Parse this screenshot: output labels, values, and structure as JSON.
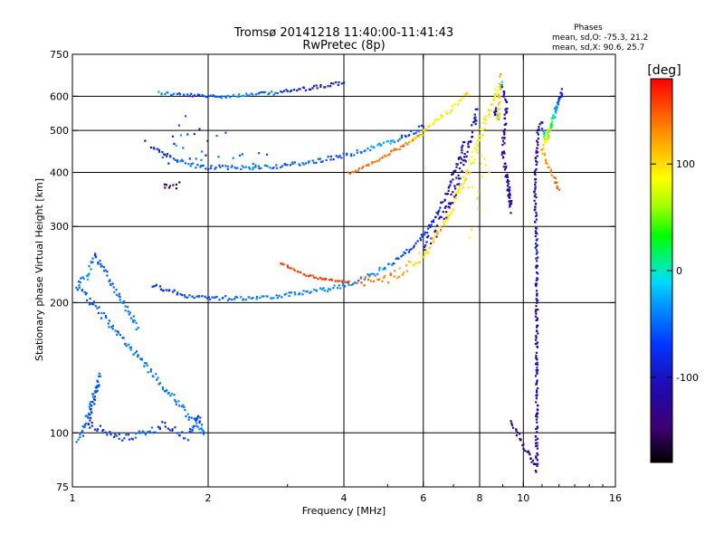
{
  "header": {
    "title_line1": "Tromsø 20141218 11:40:00-11:41:43",
    "title_line2": "RwPretec (8p)",
    "stats_title": "Phases",
    "stats_o": "mean, sd,O: -75.3, 21.2",
    "stats_x": "mean, sd,X:  90.6, 25.7"
  },
  "colorbar": {
    "label": "[deg]",
    "min": -180,
    "max": 180,
    "ticks": [
      {
        "value": 100,
        "label": "100"
      },
      {
        "value": 0,
        "label": "0"
      },
      {
        "value": -100,
        "label": "-100"
      }
    ]
  },
  "chart_data": {
    "type": "scatter",
    "title": "Tromsø 20141218 11:40:00-11:41:43",
    "subtitle": "RwPretec (8p)",
    "xlabel": "Frequency [MHz]",
    "ylabel": "Stationary phase Virtual Height [km]",
    "x_scale": "log",
    "y_scale": "log",
    "xlim": [
      1,
      16
    ],
    "ylim": [
      75,
      750
    ],
    "x_ticks": [
      1,
      2,
      4,
      6,
      8,
      10,
      16
    ],
    "y_ticks": [
      75,
      100,
      200,
      300,
      400,
      500,
      600,
      750
    ],
    "x_grid": [
      2,
      4,
      6,
      8,
      10
    ],
    "y_grid": [
      100,
      200,
      300,
      400,
      500,
      600
    ],
    "color_by": "phase [deg]",
    "traces": [
      {
        "points": [
          [
            1.55,
            612
          ],
          [
            1.7,
            606
          ],
          [
            1.85,
            602
          ],
          [
            2.0,
            600
          ],
          [
            2.2,
            601
          ],
          [
            2.4,
            604
          ],
          [
            2.6,
            607
          ],
          [
            2.8,
            611
          ],
          [
            3.0,
            616
          ],
          [
            3.2,
            622
          ],
          [
            3.4,
            628
          ],
          [
            3.6,
            633
          ],
          [
            3.8,
            640
          ],
          [
            4.0,
            645
          ]
        ],
        "phase": [
          -30,
          -50,
          -75,
          -60,
          -40,
          -30,
          -60,
          -45,
          -80,
          -95,
          -100,
          -95,
          -90,
          -85
        ],
        "spread": 4
      },
      {
        "points": [
          [
            1.5,
            460
          ],
          [
            1.6,
            440
          ],
          [
            1.7,
            428
          ],
          [
            1.8,
            418
          ],
          [
            1.9,
            413
          ],
          [
            2.0,
            411
          ],
          [
            2.2,
            410
          ],
          [
            2.5,
            411
          ],
          [
            2.8,
            413
          ],
          [
            3.0,
            416
          ],
          [
            3.3,
            421
          ],
          [
            3.6,
            428
          ],
          [
            3.8,
            433
          ],
          [
            4.0,
            438
          ],
          [
            4.3,
            446
          ],
          [
            4.6,
            456
          ],
          [
            5.0,
            468
          ],
          [
            5.3,
            478
          ],
          [
            5.6,
            490
          ],
          [
            5.8,
            500
          ],
          [
            6.0,
            510
          ]
        ],
        "phase": [
          -90,
          -80,
          -60,
          -45,
          -50,
          -60,
          -50,
          -40,
          -50,
          -55,
          -45,
          -60,
          -70,
          -60,
          -50,
          -40,
          -20,
          -50,
          -70,
          -60,
          -80
        ],
        "spread": 5
      },
      {
        "points": [
          [
            4.1,
            398
          ],
          [
            4.3,
            405
          ],
          [
            4.6,
            420
          ],
          [
            5.0,
            440
          ],
          [
            5.3,
            455
          ],
          [
            5.6,
            470
          ],
          [
            5.9,
            490
          ]
        ],
        "phase": [
          150,
          145,
          150,
          140,
          150,
          145,
          140
        ],
        "spread": 3
      },
      {
        "points": [
          [
            5.6,
            470
          ],
          [
            5.9,
            490
          ],
          [
            6.1,
            505
          ],
          [
            6.3,
            520
          ],
          [
            6.6,
            540
          ],
          [
            6.9,
            560
          ],
          [
            7.2,
            585
          ],
          [
            7.5,
            610
          ]
        ],
        "phase": [
          80,
          95,
          100,
          90,
          100,
          95,
          85,
          110
        ],
        "spread": 5
      },
      {
        "points": [
          [
            1.5,
            220
          ],
          [
            1.6,
            214
          ],
          [
            1.75,
            209
          ],
          [
            1.9,
            206
          ],
          [
            2.1,
            205
          ],
          [
            2.4,
            205
          ],
          [
            2.8,
            207
          ],
          [
            3.2,
            210
          ],
          [
            3.6,
            214
          ],
          [
            4.0,
            219
          ],
          [
            4.3,
            224
          ],
          [
            4.6,
            232
          ],
          [
            5.0,
            243
          ],
          [
            5.4,
            257
          ],
          [
            5.8,
            275
          ],
          [
            6.1,
            293
          ],
          [
            6.4,
            318
          ],
          [
            6.7,
            350
          ],
          [
            7.0,
            395
          ],
          [
            7.2,
            430
          ],
          [
            7.4,
            470
          ]
        ],
        "phase": [
          -55,
          -90,
          -65,
          -60,
          -55,
          -45,
          -40,
          -45,
          -40,
          -35,
          -45,
          -30,
          -45,
          -60,
          -70,
          -75,
          -85,
          -95,
          -110,
          -115,
          -100
        ],
        "spread": 5
      },
      {
        "points": [
          [
            6.0,
            265
          ],
          [
            6.3,
            285
          ],
          [
            6.6,
            310
          ],
          [
            6.9,
            345
          ],
          [
            7.2,
            390
          ],
          [
            7.4,
            430
          ],
          [
            7.6,
            475
          ],
          [
            7.8,
            520
          ],
          [
            7.9,
            560
          ]
        ],
        "phase": [
          -110,
          -105,
          -120,
          -115,
          -100,
          -110,
          -115,
          -100,
          -105
        ],
        "spread": 16
      },
      {
        "points": [
          [
            2.9,
            247
          ],
          [
            3.1,
            238
          ],
          [
            3.3,
            232
          ],
          [
            3.5,
            228
          ],
          [
            3.7,
            226
          ],
          [
            3.9,
            224
          ],
          [
            4.1,
            224
          ]
        ],
        "phase": [
          160,
          158,
          165,
          155,
          160,
          162,
          158
        ],
        "spread": 2
      },
      {
        "points": [
          [
            4.3,
            222
          ],
          [
            4.6,
            224
          ],
          [
            5.0,
            229
          ],
          [
            5.4,
            237
          ],
          [
            5.7,
            246
          ],
          [
            6.0,
            258
          ],
          [
            6.3,
            275
          ],
          [
            6.6,
            298
          ],
          [
            6.9,
            327
          ],
          [
            7.2,
            360
          ],
          [
            7.5,
            400
          ],
          [
            7.8,
            440
          ],
          [
            8.0,
            480
          ],
          [
            8.2,
            520
          ],
          [
            8.5,
            570
          ],
          [
            8.8,
            630
          ]
        ],
        "phase": [
          150,
          145,
          140,
          125,
          100,
          95,
          110,
          100,
          90,
          95,
          100,
          90,
          85,
          95,
          100,
          90
        ],
        "spread": 12
      },
      {
        "points": [
          [
            7.4,
            290
          ],
          [
            7.8,
            350
          ],
          [
            8.0,
            400
          ],
          [
            8.2,
            430
          ]
        ],
        "phase": [
          80,
          70,
          85,
          90
        ],
        "spread": 20
      },
      {
        "points": [
          [
            1.55,
            440
          ],
          [
            1.65,
            470
          ],
          [
            1.75,
            500
          ],
          [
            1.85,
            480
          ],
          [
            2.0,
            460
          ],
          [
            2.2,
            470
          ],
          [
            2.4,
            450
          ],
          [
            2.7,
            440
          ]
        ],
        "phase": [
          -120,
          -30,
          -60,
          -120,
          -40,
          -50,
          -45,
          -60
        ],
        "spread": 35
      },
      {
        "points": [
          [
            1.6,
            380
          ],
          [
            1.65,
            365
          ],
          [
            1.7,
            375
          ]
        ],
        "phase": [
          -150,
          -140,
          -155
        ],
        "spread": 10
      },
      {
        "points": [
          [
            1.02,
            96
          ],
          [
            1.05,
            99
          ],
          [
            1.1,
            120
          ],
          [
            1.15,
            135
          ],
          [
            1.08,
            105
          ],
          [
            1.3,
            97
          ],
          [
            1.5,
            101
          ],
          [
            1.6,
            105
          ],
          [
            1.7,
            101
          ],
          [
            1.8,
            98
          ],
          [
            1.9,
            110
          ],
          [
            1.95,
            100
          ],
          [
            1.02,
            220
          ],
          [
            1.08,
            230
          ],
          [
            1.12,
            258
          ],
          [
            1.4,
            175
          ]
        ],
        "phase": [
          -40,
          -60,
          -30,
          -50,
          -80,
          -70,
          -40,
          -100,
          -70,
          -50,
          -80,
          -40,
          -55,
          -30,
          -60,
          -40
        ],
        "spread": 8
      },
      {
        "points": [
          [
            9.4,
            106
          ],
          [
            10.7,
            82
          ],
          [
            10.7,
            104
          ],
          [
            10.7,
            175
          ],
          [
            10.7,
            195
          ],
          [
            10.7,
            262
          ],
          [
            10.6,
            380
          ],
          [
            10.8,
            500
          ],
          [
            11.0,
            520
          ],
          [
            11.2,
            470
          ],
          [
            12.2,
            620
          ],
          [
            11.0,
            445
          ],
          [
            12.0,
            365
          ]
        ],
        "phase": [
          -140,
          -120,
          -120,
          -110,
          -130,
          -90,
          -110,
          -120,
          -100,
          110,
          -105,
          120,
          150
        ],
        "spread": 6
      },
      {
        "points": [
          [
            8.6,
            540
          ],
          [
            8.7,
            560
          ],
          [
            8.8,
            530
          ],
          [
            8.9,
            660
          ],
          [
            9.0,
            620
          ],
          [
            9.2,
            580
          ],
          [
            9.0,
            450
          ],
          [
            9.4,
            330
          ],
          [
            9.2,
            390
          ]
        ],
        "phase": [
          -115,
          -120,
          100,
          120,
          -110,
          -100,
          -125,
          -120,
          -110
        ],
        "spread": 10
      }
    ]
  }
}
